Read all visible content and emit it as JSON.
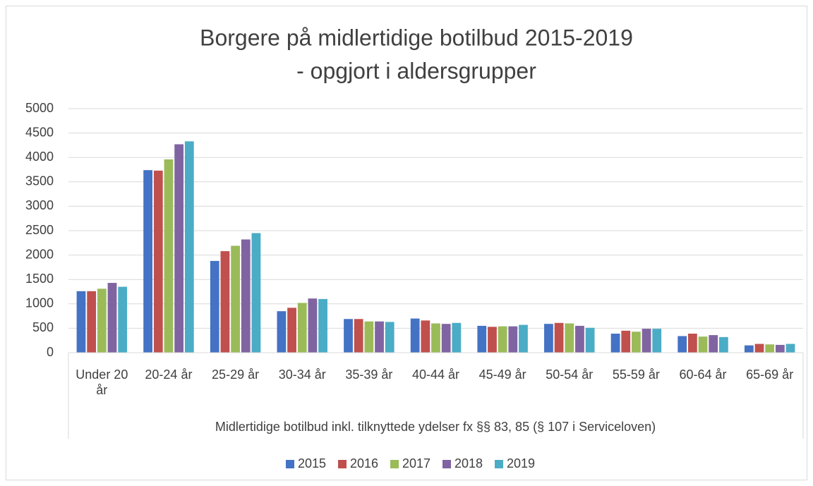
{
  "chart_data": {
    "type": "bar",
    "title": "Borgere på midlertidige botilbud 2015-2019",
    "subtitle": "- opgjort i aldersgrupper",
    "x_label": "Midlertidige botilbud inkl. tilknyttede ydelser fx §§ 83, 85 (§ 107 i Serviceloven)",
    "categories": [
      "Under 20 år",
      "20-24 år",
      "25-29 år",
      "30-34 år",
      "35-39 år",
      "40-44 år",
      "45-49 år",
      "50-54 år",
      "55-59 år",
      "60-64 år",
      "65-69 år"
    ],
    "series": [
      {
        "name": "2015",
        "color": "#4472c4",
        "values": [
          1260,
          3740,
          1880,
          850,
          690,
          700,
          550,
          590,
          390,
          340,
          150
        ]
      },
      {
        "name": "2016",
        "color": "#c0504d",
        "values": [
          1260,
          3730,
          2080,
          920,
          690,
          660,
          530,
          610,
          450,
          390,
          180
        ]
      },
      {
        "name": "2017",
        "color": "#9bbb59",
        "values": [
          1310,
          3960,
          2190,
          1020,
          640,
          600,
          540,
          600,
          430,
          330,
          170
        ]
      },
      {
        "name": "2018",
        "color": "#8064a2",
        "values": [
          1430,
          4270,
          2320,
          1110,
          640,
          590,
          540,
          550,
          490,
          360,
          160
        ]
      },
      {
        "name": "2019",
        "color": "#4bacc6",
        "values": [
          1350,
          4330,
          2450,
          1100,
          630,
          610,
          570,
          510,
          490,
          320,
          180
        ]
      }
    ],
    "ylim": [
      0,
      5000
    ],
    "yticks": [
      0,
      500,
      1000,
      1500,
      2000,
      2500,
      3000,
      3500,
      4000,
      4500,
      5000
    ],
    "grid": true,
    "legend": "bottom"
  }
}
